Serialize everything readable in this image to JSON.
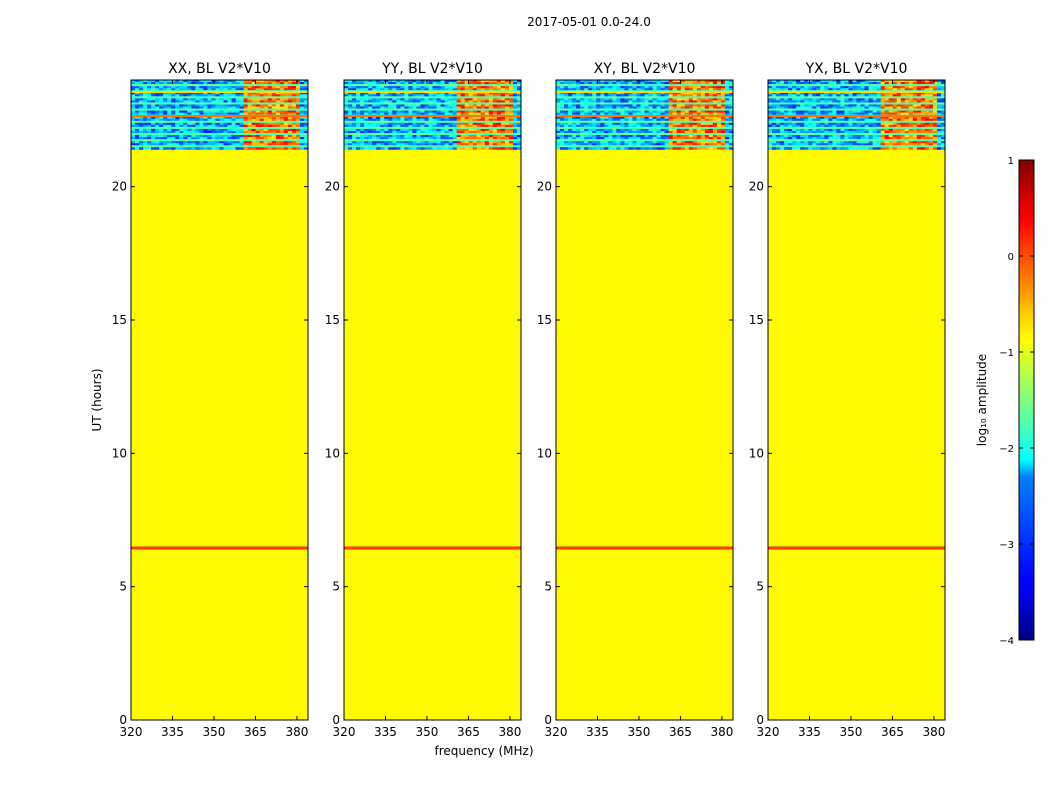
{
  "figure": {
    "suptitle": "2017-05-01 0.0-24.0",
    "xlabel": "frequency (MHz)",
    "ylabel": "UT (hours)"
  },
  "chart_data": {
    "type": "heatmap",
    "x_ticks": [
      320,
      335,
      350,
      365,
      380
    ],
    "y_ticks": [
      0,
      5,
      10,
      15,
      20
    ],
    "xlim": [
      320,
      384
    ],
    "ylim": [
      0,
      24
    ],
    "panels": [
      {
        "title": "XX, BL V2*V10"
      },
      {
        "title": "YY, BL V2*V10"
      },
      {
        "title": "XY, BL V2*V10"
      },
      {
        "title": "YX, BL V2*V10"
      }
    ],
    "background_value": -0.85,
    "data_region_ut": [
      21.4,
      24.0
    ],
    "rfi_band_mhz": [
      361,
      381
    ],
    "horizontal_line_ut": 6.45,
    "horizontal_line_value": 0.1,
    "colorbar": {
      "label": "log₁₀ amplitude",
      "range": [
        -4,
        1
      ],
      "ticks": [
        1,
        0,
        -1,
        -2,
        -3,
        -4
      ],
      "tick_labels": [
        "1",
        "0",
        "−1",
        "−2",
        "−3",
        "−4"
      ],
      "colormap": "jet"
    }
  }
}
